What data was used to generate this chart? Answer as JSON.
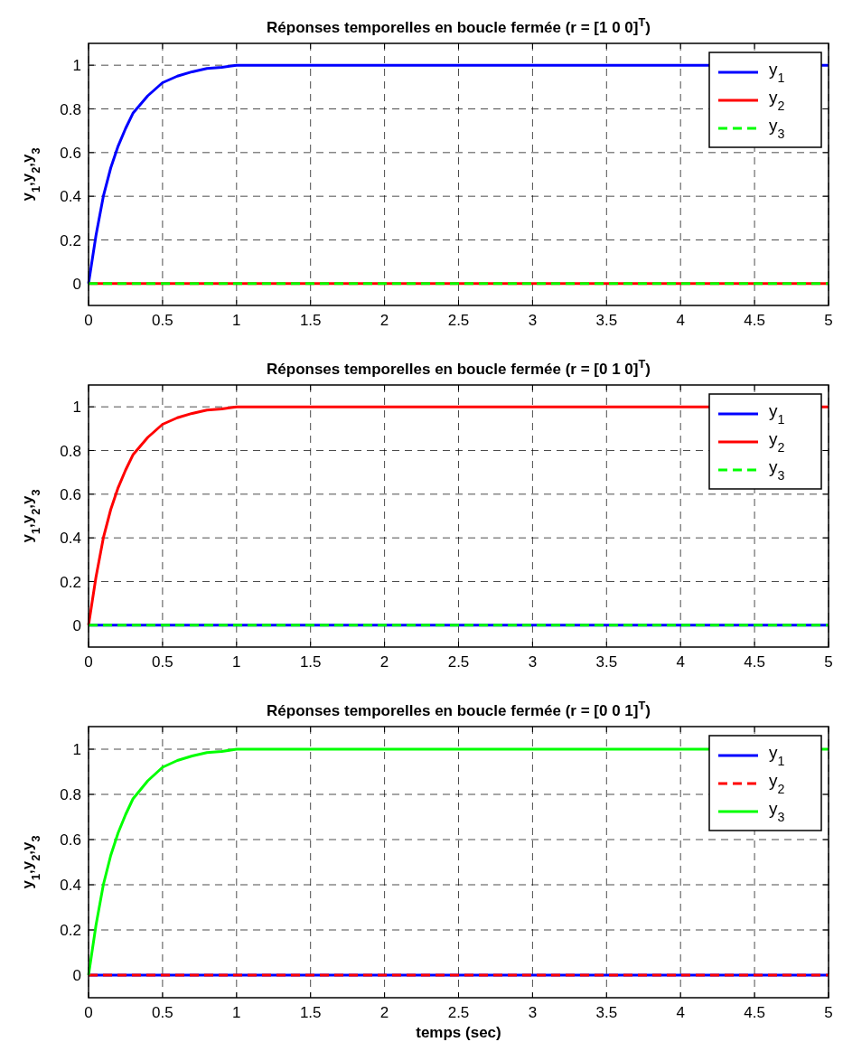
{
  "chart_data": [
    {
      "type": "line",
      "title": "Réponses temporelles en boucle fermée (r = [1  0  0]$^{T}$)",
      "ylabel": "y$_{1}$,y$_{2}$,y$_{3}$",
      "x": [
        0,
        0.05,
        0.1,
        0.15,
        0.2,
        0.25,
        0.3,
        0.4,
        0.5,
        0.6,
        0.7,
        0.8,
        0.9,
        1,
        2,
        3,
        4,
        5
      ],
      "xlim": [
        0,
        5
      ],
      "ylim": [
        -0.1,
        1.1
      ],
      "xticks": [
        0,
        0.5,
        1,
        1.5,
        2,
        2.5,
        3,
        3.5,
        4,
        4.5,
        5
      ],
      "yticks": [
        0,
        0.2,
        0.4,
        0.6,
        0.8,
        1
      ],
      "grid": true,
      "legend": "top right",
      "series": [
        {
          "name": "y$_{1}$",
          "color": "#0000ff",
          "values": [
            0,
            0.22,
            0.4,
            0.53,
            0.63,
            0.71,
            0.78,
            0.86,
            0.92,
            0.95,
            0.97,
            0.985,
            0.99,
            1,
            1,
            1,
            1,
            1
          ]
        },
        {
          "name": "y$_{2}$",
          "color": "#ff0000",
          "values": [
            0,
            0,
            0,
            0,
            0,
            0,
            0,
            0,
            0,
            0,
            0,
            0,
            0,
            0,
            0,
            0,
            0,
            0
          ]
        },
        {
          "name": "y$_{3}$",
          "color": "#00ff00",
          "line_style": "dashed",
          "values": [
            0,
            0,
            0,
            0,
            0,
            0,
            0,
            0,
            0,
            0,
            0,
            0,
            0,
            0,
            0,
            0,
            0,
            0
          ]
        }
      ]
    },
    {
      "type": "line",
      "title": "Réponses temporelles en boucle fermée (r = [0  1  0]$^{T}$)",
      "ylabel": "y$_{1}$,y$_{2}$,y$_{3}$",
      "x": [
        0,
        0.05,
        0.1,
        0.15,
        0.2,
        0.25,
        0.3,
        0.4,
        0.5,
        0.6,
        0.7,
        0.8,
        0.9,
        1,
        2,
        3,
        4,
        5
      ],
      "xlim": [
        0,
        5
      ],
      "ylim": [
        -0.1,
        1.1
      ],
      "xticks": [
        0,
        0.5,
        1,
        1.5,
        2,
        2.5,
        3,
        3.5,
        4,
        4.5,
        5
      ],
      "yticks": [
        0,
        0.2,
        0.4,
        0.6,
        0.8,
        1
      ],
      "grid": true,
      "legend": "top right",
      "series": [
        {
          "name": "y$_{1}$",
          "color": "#0000ff",
          "values": [
            0,
            0,
            0,
            0,
            0,
            0,
            0,
            0,
            0,
            0,
            0,
            0,
            0,
            0,
            0,
            0,
            0,
            0
          ]
        },
        {
          "name": "y$_{2}$",
          "color": "#ff0000",
          "values": [
            0,
            0.22,
            0.4,
            0.53,
            0.63,
            0.71,
            0.78,
            0.86,
            0.92,
            0.95,
            0.97,
            0.985,
            0.99,
            1,
            1,
            1,
            1,
            1
          ]
        },
        {
          "name": "y$_{3}$",
          "color": "#00ff00",
          "line_style": "dashed",
          "values": [
            0,
            0,
            0,
            0,
            0,
            0,
            0,
            0,
            0,
            0,
            0,
            0,
            0,
            0,
            0,
            0,
            0,
            0
          ]
        }
      ]
    },
    {
      "type": "line",
      "title": "Réponses temporelles en boucle fermée (r = [0  0  1]$^{T}$)",
      "xlabel": "temps (sec)",
      "ylabel": "y$_{1}$,y$_{2}$,y$_{3}$",
      "x": [
        0,
        0.05,
        0.1,
        0.15,
        0.2,
        0.25,
        0.3,
        0.4,
        0.5,
        0.6,
        0.7,
        0.8,
        0.9,
        1,
        2,
        3,
        4,
        5
      ],
      "xlim": [
        0,
        5
      ],
      "ylim": [
        -0.1,
        1.1
      ],
      "xticks": [
        0,
        0.5,
        1,
        1.5,
        2,
        2.5,
        3,
        3.5,
        4,
        4.5,
        5
      ],
      "yticks": [
        0,
        0.2,
        0.4,
        0.6,
        0.8,
        1
      ],
      "grid": true,
      "legend": "top right",
      "series": [
        {
          "name": "y$_{1}$",
          "color": "#0000ff",
          "values": [
            0,
            0,
            0,
            0,
            0,
            0,
            0,
            0,
            0,
            0,
            0,
            0,
            0,
            0,
            0,
            0,
            0,
            0
          ]
        },
        {
          "name": "y$_{2}$",
          "color": "#ff0000",
          "line_style": "dashed",
          "values": [
            0,
            0,
            0,
            0,
            0,
            0,
            0,
            0,
            0,
            0,
            0,
            0,
            0,
            0,
            0,
            0,
            0,
            0
          ]
        },
        {
          "name": "y$_{3}$",
          "color": "#00ff00",
          "values": [
            0,
            0.22,
            0.4,
            0.53,
            0.63,
            0.71,
            0.78,
            0.86,
            0.92,
            0.95,
            0.97,
            0.985,
            0.99,
            1,
            1,
            1,
            1,
            1
          ]
        }
      ]
    }
  ]
}
